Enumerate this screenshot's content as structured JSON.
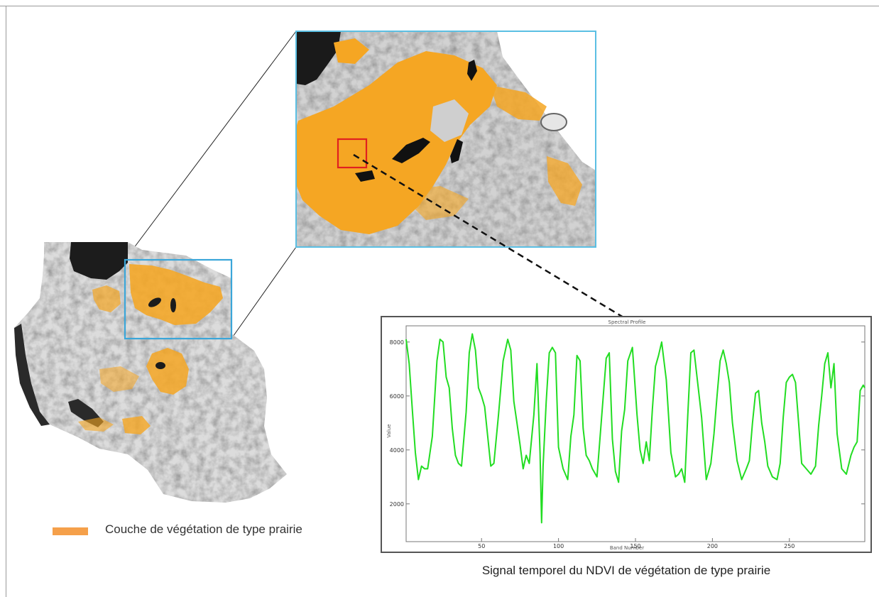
{
  "legend": {
    "label": "Couche de végétation de type prairie",
    "swatch_color": "#f5a04a"
  },
  "colors": {
    "grassland": "#f5a623",
    "inset_border": "#5bbfe3",
    "sample_box": "#e02020",
    "curve": "#22dd22"
  },
  "chart": {
    "caption": "Signal temporel du NDVI de végétation de type prairie"
  },
  "chart_data": {
    "type": "line",
    "title": "Spectral Profile",
    "xlabel": "Band Number",
    "ylabel": "Value",
    "xlim": [
      1,
      299
    ],
    "ylim": [
      600,
      8600
    ],
    "x_ticks": [
      50,
      100,
      150,
      200,
      250
    ],
    "y_ticks": [
      2000,
      4000,
      6000,
      8000
    ],
    "series": [
      {
        "x": [
          1,
          3,
          5,
          7,
          9,
          11,
          13,
          15,
          18,
          21,
          23,
          25,
          27,
          29,
          31,
          33,
          35,
          37,
          40,
          42,
          44,
          46,
          48,
          50,
          52,
          54,
          56,
          58,
          61,
          64,
          67,
          69,
          71,
          73,
          75,
          77,
          79,
          81,
          84,
          86,
          88,
          89,
          90,
          92,
          94,
          96,
          98,
          100,
          103,
          106,
          108,
          110,
          112,
          114,
          116,
          118,
          120,
          122,
          125,
          128,
          131,
          133,
          135,
          137,
          139,
          141,
          143,
          145,
          148,
          151,
          153,
          155,
          157,
          159,
          161,
          163,
          165,
          167,
          170,
          173,
          176,
          178,
          180,
          182,
          184,
          186,
          188,
          190,
          193,
          196,
          199,
          201,
          203,
          205,
          207,
          209,
          211,
          213,
          216,
          219,
          222,
          224,
          226,
          228,
          230,
          232,
          234,
          236,
          239,
          242,
          244,
          246,
          248,
          250,
          252,
          254,
          256,
          258,
          261,
          264,
          267,
          269,
          271,
          273,
          275,
          277,
          279,
          281,
          284,
          287,
          290,
          292,
          294,
          296,
          298,
          299
        ],
        "y": [
          8100,
          7200,
          5500,
          3900,
          2900,
          3400,
          3300,
          3300,
          4500,
          7300,
          8100,
          8000,
          6700,
          6300,
          4800,
          3800,
          3500,
          3400,
          5400,
          7600,
          8300,
          7700,
          6300,
          6000,
          5600,
          4500,
          3400,
          3500,
          5300,
          7300,
          8100,
          7700,
          5800,
          5000,
          4200,
          3300,
          3800,
          3500,
          5300,
          7200,
          3900,
          1300,
          3400,
          5800,
          7600,
          7800,
          7600,
          4100,
          3300,
          2900,
          4500,
          5300,
          7500,
          7300,
          4800,
          3800,
          3600,
          3300,
          3000,
          5200,
          7400,
          7600,
          4400,
          3200,
          2800,
          4700,
          5500,
          7300,
          7800,
          5300,
          4000,
          3500,
          4300,
          3600,
          5500,
          7100,
          7500,
          8000,
          6600,
          3900,
          3000,
          3100,
          3300,
          2800,
          5300,
          7600,
          7700,
          6700,
          5200,
          2900,
          3500,
          4600,
          6000,
          7300,
          7700,
          7200,
          6500,
          5000,
          3600,
          2900,
          3300,
          3600,
          5000,
          6100,
          6200,
          5000,
          4300,
          3400,
          3000,
          2900,
          3500,
          5200,
          6500,
          6700,
          6800,
          6500,
          5000,
          3500,
          3300,
          3100,
          3400,
          4900,
          6000,
          7200,
          7600,
          6300,
          7200,
          4600,
          3300,
          3100,
          3800,
          4100,
          4300,
          6200,
          6400,
          6300
        ]
      }
    ]
  }
}
